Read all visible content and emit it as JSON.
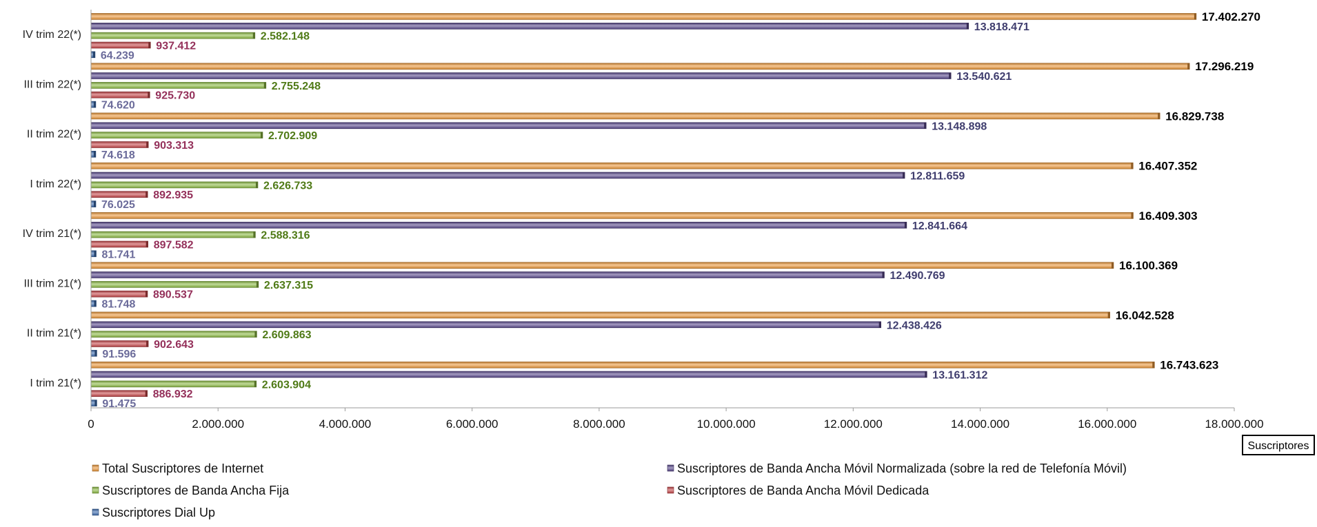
{
  "chart_data": {
    "type": "bar",
    "orientation": "horizontal",
    "categories": [
      "I trim 21(*)",
      "II trim 21(*)",
      "III trim 21(*)",
      "IV trim 21(*)",
      "I trim 22(*)",
      "II trim 22(*)",
      "III trim 22(*)",
      "IV trim 22(*)"
    ],
    "series": [
      {
        "name": "Suscriptores Dial Up",
        "key": "dialup",
        "color": "#3f6fb3",
        "label_color": "#6b6b9a",
        "values": [
          91475,
          91596,
          81748,
          81741,
          76025,
          74618,
          74620,
          64239
        ],
        "labels": [
          "91.475",
          "91.596",
          "81.748",
          "81.741",
          "76.025",
          "74.618",
          "74.620",
          "64.239"
        ]
      },
      {
        "name": "Suscriptores de Banda Ancha Móvil Dedicada",
        "key": "dedicada",
        "color": "#c8474a",
        "label_color": "#94305a",
        "values": [
          886932,
          902643,
          890537,
          897582,
          892935,
          903313,
          925730,
          937412
        ],
        "labels": [
          "886.932",
          "902.643",
          "890.537",
          "897.582",
          "892.935",
          "903.313",
          "925.730",
          "937.412"
        ]
      },
      {
        "name": "Suscriptores de Banda Ancha Fija",
        "key": "fija",
        "color": "#8fbe45",
        "label_color": "#4f7a16",
        "values": [
          2603904,
          2609863,
          2637315,
          2588316,
          2626733,
          2702909,
          2755248,
          2582148
        ],
        "labels": [
          "2.603.904",
          "2.609.863",
          "2.637.315",
          "2.588.316",
          "2.626.733",
          "2.702.909",
          "2.755.248",
          "2.582.148"
        ]
      },
      {
        "name": "Suscriptores de Banda Ancha Móvil Normalizada (sobre la red de Telefonía Móvil)",
        "key": "normalizada",
        "color": "#5b4a8e",
        "label_color": "#3f3d6e",
        "values": [
          13161312,
          12438426,
          12490769,
          12841664,
          12811659,
          13148898,
          13540621,
          13818471
        ],
        "labels": [
          "13.161.312",
          "12.438.426",
          "12.490.769",
          "12.841.664",
          "12.811.659",
          "13.148.898",
          "13.540.621",
          "13.818.471"
        ]
      },
      {
        "name": "Total Suscriptores de Internet",
        "key": "total",
        "color": "#ee9a3c",
        "label_color": "#000000",
        "values": [
          16743623,
          16042528,
          16100369,
          16409303,
          16407352,
          16829738,
          17296219,
          17402270
        ],
        "labels": [
          "16.743.623",
          "16.042.528",
          "16.100.369",
          "16.409.303",
          "16.407.352",
          "16.829.738",
          "17.296.219",
          "17.402.270"
        ]
      }
    ],
    "xlim": [
      0,
      18000000
    ],
    "x_ticks": [
      0,
      2000000,
      4000000,
      6000000,
      8000000,
      10000000,
      12000000,
      14000000,
      16000000,
      18000000
    ],
    "x_tick_labels": [
      "0",
      "2.000.000",
      "4.000.000",
      "6.000.000",
      "8.000.000",
      "10.000.000",
      "12.000.000",
      "14.000.000",
      "16.000.000",
      "18.000.000"
    ],
    "xlabel": "Suscriptores",
    "legend_position": "bottom",
    "legend_order": [
      "total",
      "normalizada",
      "fija",
      "dedicada",
      "dialup"
    ],
    "grid": false
  }
}
